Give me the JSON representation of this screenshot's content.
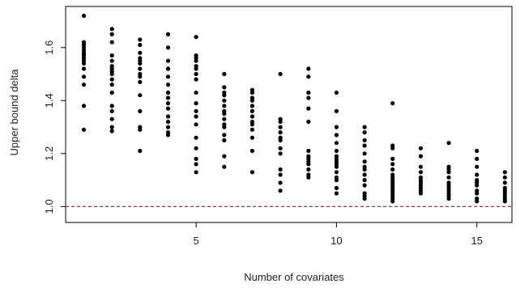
{
  "chart_data": {
    "type": "scatter",
    "title": "",
    "xlabel": "Number of covariates",
    "ylabel": "Upper bound delta",
    "xlim": [
      0.35,
      16.25
    ],
    "ylim": [
      0.94,
      1.755
    ],
    "xticks": [
      5,
      10,
      15
    ],
    "yticks": [
      1.0,
      1.2,
      1.4,
      1.6
    ],
    "xtick_labels": [
      "5",
      "10",
      "15"
    ],
    "ytick_labels": [
      "1.0",
      "1.2",
      "1.4",
      "1.6"
    ],
    "grid": false,
    "legend": "none",
    "point_color": "#000000",
    "reference_line": {
      "y": 1.0,
      "color": "#e41a1c",
      "style": "dashed"
    },
    "series": [
      {
        "points": [
          [
            1,
            1.72
          ],
          [
            1,
            1.62
          ],
          [
            1,
            1.61
          ],
          [
            1,
            1.6
          ],
          [
            1,
            1.59
          ],
          [
            1,
            1.58
          ],
          [
            1,
            1.575
          ],
          [
            1,
            1.57
          ],
          [
            1,
            1.56
          ],
          [
            1,
            1.55
          ],
          [
            1,
            1.54
          ],
          [
            1,
            1.52
          ],
          [
            1,
            1.49
          ],
          [
            1,
            1.46
          ],
          [
            1,
            1.38
          ],
          [
            1,
            1.29
          ],
          [
            2,
            1.67
          ],
          [
            2,
            1.65
          ],
          [
            2,
            1.62
          ],
          [
            2,
            1.57
          ],
          [
            2,
            1.55
          ],
          [
            2,
            1.53
          ],
          [
            2,
            1.52
          ],
          [
            2,
            1.51
          ],
          [
            2,
            1.5
          ],
          [
            2,
            1.48
          ],
          [
            2,
            1.46
          ],
          [
            2,
            1.43
          ],
          [
            2,
            1.38
          ],
          [
            2,
            1.36
          ],
          [
            2,
            1.33
          ],
          [
            2,
            1.3
          ],
          [
            2,
            1.285
          ],
          [
            3,
            1.63
          ],
          [
            3,
            1.61
          ],
          [
            3,
            1.58
          ],
          [
            3,
            1.56
          ],
          [
            3,
            1.55
          ],
          [
            3,
            1.54
          ],
          [
            3,
            1.52
          ],
          [
            3,
            1.5
          ],
          [
            3,
            1.49
          ],
          [
            3,
            1.47
          ],
          [
            3,
            1.42
          ],
          [
            3,
            1.36
          ],
          [
            3,
            1.3
          ],
          [
            3,
            1.29
          ],
          [
            3,
            1.21
          ],
          [
            4,
            1.65
          ],
          [
            4,
            1.6
          ],
          [
            4,
            1.55
          ],
          [
            4,
            1.52
          ],
          [
            4,
            1.49
          ],
          [
            4,
            1.46
          ],
          [
            4,
            1.43
          ],
          [
            4,
            1.41
          ],
          [
            4,
            1.39
          ],
          [
            4,
            1.37
          ],
          [
            4,
            1.34
          ],
          [
            4,
            1.32
          ],
          [
            4,
            1.3
          ],
          [
            4,
            1.28
          ],
          [
            4,
            1.27
          ],
          [
            5,
            1.64
          ],
          [
            5,
            1.57
          ],
          [
            5,
            1.56
          ],
          [
            5,
            1.55
          ],
          [
            5,
            1.53
          ],
          [
            5,
            1.52
          ],
          [
            5,
            1.5
          ],
          [
            5,
            1.48
          ],
          [
            5,
            1.43
          ],
          [
            5,
            1.39
          ],
          [
            5,
            1.36
          ],
          [
            5,
            1.34
          ],
          [
            5,
            1.31
          ],
          [
            5,
            1.26
          ],
          [
            5,
            1.22
          ],
          [
            5,
            1.18
          ],
          [
            5,
            1.16
          ],
          [
            5,
            1.13
          ],
          [
            6,
            1.5
          ],
          [
            6,
            1.45
          ],
          [
            6,
            1.43
          ],
          [
            6,
            1.42
          ],
          [
            6,
            1.4
          ],
          [
            6,
            1.38
          ],
          [
            6,
            1.36
          ],
          [
            6,
            1.35
          ],
          [
            6,
            1.33
          ],
          [
            6,
            1.31
          ],
          [
            6,
            1.3
          ],
          [
            6,
            1.27
          ],
          [
            6,
            1.25
          ],
          [
            6,
            1.19
          ],
          [
            6,
            1.15
          ],
          [
            7,
            1.44
          ],
          [
            7,
            1.43
          ],
          [
            7,
            1.41
          ],
          [
            7,
            1.4
          ],
          [
            7,
            1.38
          ],
          [
            7,
            1.36
          ],
          [
            7,
            1.34
          ],
          [
            7,
            1.32
          ],
          [
            7,
            1.31
          ],
          [
            7,
            1.29
          ],
          [
            7,
            1.26
          ],
          [
            7,
            1.21
          ],
          [
            7,
            1.13
          ],
          [
            8,
            1.5
          ],
          [
            8,
            1.33
          ],
          [
            8,
            1.32
          ],
          [
            8,
            1.3
          ],
          [
            8,
            1.28
          ],
          [
            8,
            1.26
          ],
          [
            8,
            1.25
          ],
          [
            8,
            1.22
          ],
          [
            8,
            1.2
          ],
          [
            8,
            1.14
          ],
          [
            8,
            1.12
          ],
          [
            8,
            1.09
          ],
          [
            8,
            1.06
          ],
          [
            9,
            1.52
          ],
          [
            9,
            1.49
          ],
          [
            9,
            1.43
          ],
          [
            9,
            1.41
          ],
          [
            9,
            1.37
          ],
          [
            9,
            1.32
          ],
          [
            9,
            1.21
          ],
          [
            9,
            1.19
          ],
          [
            9,
            1.18
          ],
          [
            9,
            1.17
          ],
          [
            9,
            1.16
          ],
          [
            9,
            1.14
          ],
          [
            9,
            1.12
          ],
          [
            9,
            1.11
          ],
          [
            10,
            1.43
          ],
          [
            10,
            1.36
          ],
          [
            10,
            1.3
          ],
          [
            10,
            1.27
          ],
          [
            10,
            1.24
          ],
          [
            10,
            1.21
          ],
          [
            10,
            1.19
          ],
          [
            10,
            1.18
          ],
          [
            10,
            1.17
          ],
          [
            10,
            1.16
          ],
          [
            10,
            1.15
          ],
          [
            10,
            1.13
          ],
          [
            10,
            1.11
          ],
          [
            10,
            1.1
          ],
          [
            10,
            1.07
          ],
          [
            10,
            1.05
          ],
          [
            11,
            1.3
          ],
          [
            11,
            1.28
          ],
          [
            11,
            1.25
          ],
          [
            11,
            1.23
          ],
          [
            11,
            1.2
          ],
          [
            11,
            1.17
          ],
          [
            11,
            1.15
          ],
          [
            11,
            1.14
          ],
          [
            11,
            1.12
          ],
          [
            11,
            1.1
          ],
          [
            11,
            1.08
          ],
          [
            11,
            1.05
          ],
          [
            11,
            1.04
          ],
          [
            11,
            1.03
          ],
          [
            12,
            1.39
          ],
          [
            12,
            1.23
          ],
          [
            12,
            1.22
          ],
          [
            12,
            1.18
          ],
          [
            12,
            1.16
          ],
          [
            12,
            1.14
          ],
          [
            12,
            1.12
          ],
          [
            12,
            1.11
          ],
          [
            12,
            1.1
          ],
          [
            12,
            1.09
          ],
          [
            12,
            1.08
          ],
          [
            12,
            1.07
          ],
          [
            12,
            1.06
          ],
          [
            12,
            1.05
          ],
          [
            12,
            1.04
          ],
          [
            12,
            1.03
          ],
          [
            12,
            1.02
          ],
          [
            13,
            1.22
          ],
          [
            13,
            1.19
          ],
          [
            13,
            1.15
          ],
          [
            13,
            1.13
          ],
          [
            13,
            1.11
          ],
          [
            13,
            1.1
          ],
          [
            13,
            1.09
          ],
          [
            13,
            1.08
          ],
          [
            13,
            1.07
          ],
          [
            13,
            1.06
          ],
          [
            13,
            1.05
          ],
          [
            14,
            1.24
          ],
          [
            14,
            1.15
          ],
          [
            14,
            1.14
          ],
          [
            14,
            1.13
          ],
          [
            14,
            1.11
          ],
          [
            14,
            1.09
          ],
          [
            14,
            1.08
          ],
          [
            14,
            1.07
          ],
          [
            14,
            1.06
          ],
          [
            14,
            1.05
          ],
          [
            14,
            1.04
          ],
          [
            14,
            1.03
          ],
          [
            15,
            1.21
          ],
          [
            15,
            1.18
          ],
          [
            15,
            1.15
          ],
          [
            15,
            1.12
          ],
          [
            15,
            1.1
          ],
          [
            15,
            1.09
          ],
          [
            15,
            1.08
          ],
          [
            15,
            1.06
          ],
          [
            15,
            1.05
          ],
          [
            15,
            1.03
          ],
          [
            15,
            1.02
          ],
          [
            16,
            1.13
          ],
          [
            16,
            1.11
          ],
          [
            16,
            1.09
          ],
          [
            16,
            1.07
          ],
          [
            16,
            1.06
          ],
          [
            16,
            1.05
          ],
          [
            16,
            1.04
          ],
          [
            16,
            1.03
          ],
          [
            16,
            1.02
          ]
        ]
      }
    ]
  }
}
